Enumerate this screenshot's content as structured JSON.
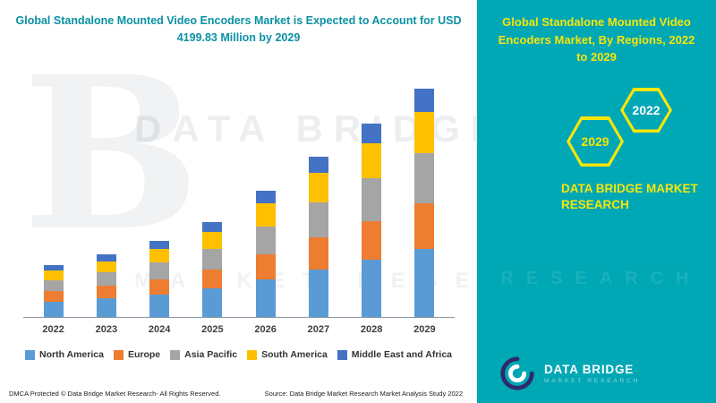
{
  "left": {
    "title": "Global Standalone Mounted Video Encoders Market is Expected to Account for USD 4199.83 Million by 2029",
    "footer_left": "DMCA Protected © Data Bridge Market Research- All Rights Reserved.",
    "footer_source": "Source: Data Bridge Market Research Market Analysis Study 2022",
    "watermark_b": "B",
    "watermark_line1": "DATA BRIDGE",
    "watermark_line2": "MARKET RESEARCH"
  },
  "right": {
    "title": "Global Standalone Mounted Video Encoders Market, By Regions, 2022 to 2029",
    "hex_left_label": "2029",
    "hex_right_label": "2022",
    "brand_line1": "DATA BRIDGE MARKET",
    "brand_line2": "RESEARCH",
    "logo_name": "DATA BRIDGE",
    "logo_sub": "MARKET RESEARCH",
    "watermark": "RESEARCH",
    "bg_color": "#00a7b5",
    "accent_yellow": "#f6e60a"
  },
  "chart_data": {
    "type": "bar",
    "stacked": true,
    "title": "Global Standalone Mounted Video Encoders Market, By Regions, 2022 to 2029",
    "xlabel": "",
    "ylabel": "",
    "units": "USD Million",
    "total_2029": 4199.83,
    "ylim": [
      0,
      4200
    ],
    "grid": false,
    "legend_position": "bottom",
    "categories": [
      "2022",
      "2023",
      "2024",
      "2025",
      "2026",
      "2027",
      "2028",
      "2029"
    ],
    "series": [
      {
        "name": "North America",
        "color": "#5b9bd5",
        "values": [
          280,
          340,
          415,
          520,
          690,
          875,
          1055,
          1245
        ]
      },
      {
        "name": "Europe",
        "color": "#ed7d31",
        "values": [
          190,
          230,
          280,
          350,
          465,
          590,
          710,
          840
        ]
      },
      {
        "name": "Asia Pacific",
        "color": "#a5a5a5",
        "values": [
          210,
          255,
          310,
          385,
          515,
          650,
          785,
          925
        ]
      },
      {
        "name": "South America",
        "color": "#ffc000",
        "values": [
          170,
          205,
          250,
          315,
          420,
          530,
          640,
          755
        ]
      },
      {
        "name": "Middle East and Africa",
        "color": "#4472c4",
        "values": [
          100,
          120,
          145,
          180,
          240,
          305,
          370,
          434.83
        ]
      }
    ]
  }
}
